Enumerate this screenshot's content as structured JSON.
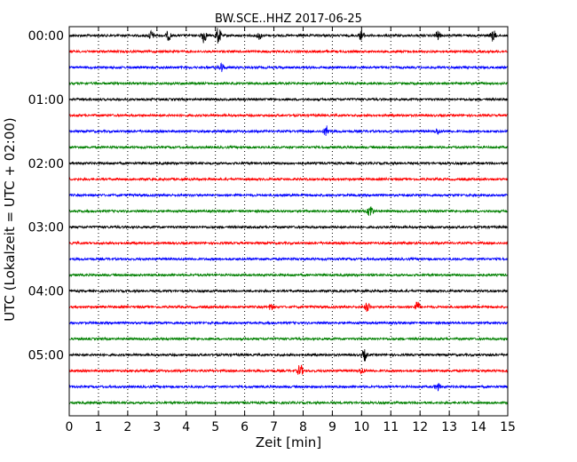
{
  "chart_data": {
    "type": "line",
    "title": "BW.SCE..HHZ 2017-06-25",
    "xlabel": "Zeit  [min]",
    "ylabel": "UTC (Lokalzeit = UTC + 02:00)",
    "xlim": [
      0,
      15
    ],
    "xticks": [
      0,
      1,
      2,
      3,
      4,
      5,
      6,
      7,
      8,
      9,
      10,
      11,
      12,
      13,
      14,
      15
    ],
    "yticks": [
      "00:00",
      "01:00",
      "02:00",
      "03:00",
      "04:00",
      "05:00"
    ],
    "trace_minutes": 15,
    "grid": "x-dotted",
    "series_colors": [
      "#000000",
      "#ff0000",
      "#0000ff",
      "#008000"
    ],
    "traces": [
      {
        "start": "00:00",
        "events": [
          {
            "x": 2.8,
            "a": 5
          },
          {
            "x": 3.4,
            "a": 5
          },
          {
            "x": 4.6,
            "a": 8
          },
          {
            "x": 5.1,
            "a": 9
          },
          {
            "x": 6.5,
            "a": 4
          },
          {
            "x": 10.0,
            "a": 5
          },
          {
            "x": 12.6,
            "a": 5
          },
          {
            "x": 14.5,
            "a": 6
          }
        ]
      },
      {
        "start": "00:15",
        "events": []
      },
      {
        "start": "00:30",
        "events": [
          {
            "x": 5.2,
            "a": 5
          }
        ]
      },
      {
        "start": "00:45",
        "events": []
      },
      {
        "start": "01:00",
        "events": []
      },
      {
        "start": "01:15",
        "events": []
      },
      {
        "start": "01:30",
        "events": [
          {
            "x": 8.8,
            "a": 6
          },
          {
            "x": 12.6,
            "a": 3
          }
        ]
      },
      {
        "start": "01:45",
        "events": []
      },
      {
        "start": "02:00",
        "events": []
      },
      {
        "start": "02:15",
        "events": []
      },
      {
        "start": "02:30",
        "events": []
      },
      {
        "start": "02:45",
        "events": [
          {
            "x": 10.3,
            "a": 7
          }
        ]
      },
      {
        "start": "03:00",
        "events": []
      },
      {
        "start": "03:15",
        "events": []
      },
      {
        "start": "03:30",
        "events": []
      },
      {
        "start": "03:45",
        "events": []
      },
      {
        "start": "04:00",
        "events": []
      },
      {
        "start": "04:15",
        "events": [
          {
            "x": 6.9,
            "a": 3
          },
          {
            "x": 10.2,
            "a": 5
          },
          {
            "x": 11.9,
            "a": 6
          }
        ]
      },
      {
        "start": "04:30",
        "events": []
      },
      {
        "start": "04:45",
        "events": []
      },
      {
        "start": "05:00",
        "events": [
          {
            "x": 10.1,
            "a": 6
          }
        ]
      },
      {
        "start": "05:15",
        "events": [
          {
            "x": 7.9,
            "a": 7
          },
          {
            "x": 10.0,
            "a": 3
          }
        ]
      },
      {
        "start": "05:30",
        "events": [
          {
            "x": 12.6,
            "a": 4
          }
        ]
      },
      {
        "start": "05:45",
        "events": []
      }
    ]
  }
}
